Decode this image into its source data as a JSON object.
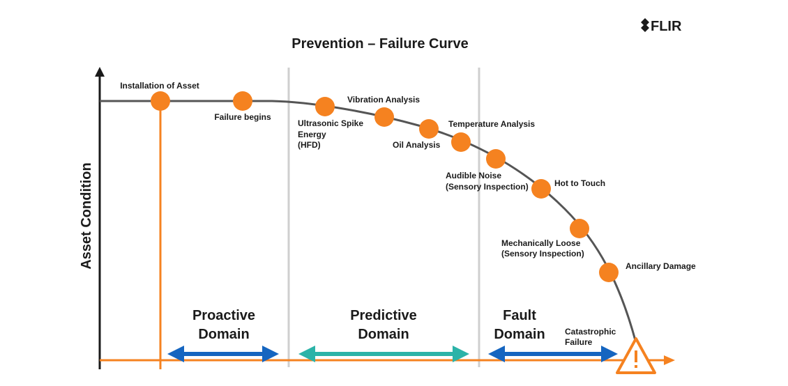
{
  "header": {
    "title": "Prevention – Failure Curve",
    "logo": "FLIR"
  },
  "axis": {
    "y_label": "Asset Condition"
  },
  "nodes": [
    {
      "label": [
        "Installation of Asset"
      ]
    },
    {
      "label": [
        "Failure begins"
      ]
    },
    {
      "label": [
        "Ultrasonic Spike",
        "Energy",
        "(HFD)"
      ]
    },
    {
      "label": [
        "Vibration Analysis"
      ]
    },
    {
      "label": [
        "Oil Analysis"
      ]
    },
    {
      "label": [
        "Temperature Analysis"
      ]
    },
    {
      "label": [
        "Audible Noise",
        "(Sensory Inspection)"
      ]
    },
    {
      "label": [
        "Hot to Touch"
      ]
    },
    {
      "label": [
        "Mechanically Loose",
        "(Sensory Inspection)"
      ]
    },
    {
      "label": [
        "Ancillary Damage"
      ]
    },
    {
      "label": [
        "Catastrophic",
        "Failure"
      ]
    }
  ],
  "domains": [
    {
      "label": [
        "Proactive",
        "Domain"
      ]
    },
    {
      "label": [
        "Predictive",
        "Domain"
      ]
    },
    {
      "label": [
        "Fault",
        "Domain"
      ]
    }
  ]
}
